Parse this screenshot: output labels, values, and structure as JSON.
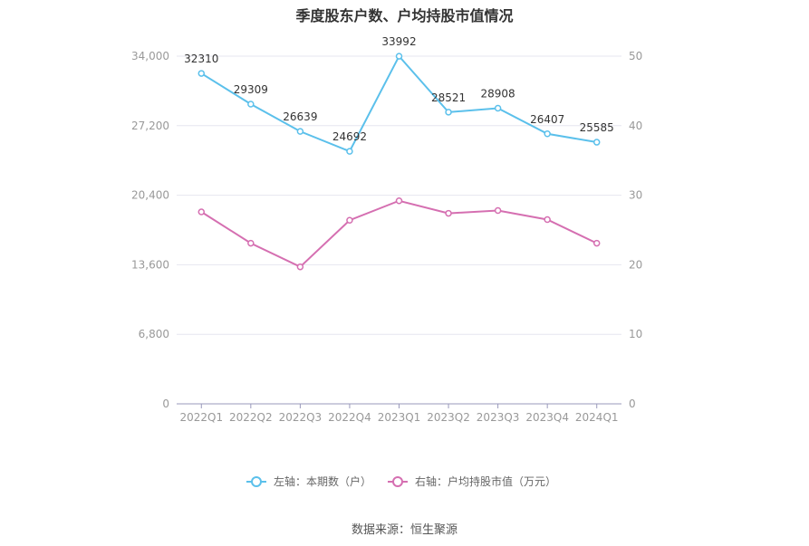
{
  "title": "季度股东户数、户均持股市值情况",
  "source": "数据来源：恒生聚源",
  "colors": {
    "series1": "#5bc0eb",
    "series2": "#d56fb1",
    "grid": "#e6e6ef",
    "axis": "#9999bb"
  },
  "chart_data": {
    "type": "line",
    "title": "季度股东户数、户均持股市值情况",
    "categories": [
      "2022Q1",
      "2022Q2",
      "2022Q3",
      "2022Q4",
      "2023Q1",
      "2023Q2",
      "2023Q3",
      "2023Q4",
      "2024Q1"
    ],
    "left_axis": {
      "ticks": [
        "0",
        "6,800",
        "13,600",
        "20,400",
        "27,200",
        "34,000"
      ],
      "ylim": [
        0,
        34000
      ]
    },
    "right_axis": {
      "ticks": [
        "0",
        "10",
        "20",
        "30",
        "40",
        "50"
      ],
      "ylim": [
        0,
        50
      ]
    },
    "series": [
      {
        "name": "左轴：本期数（户）",
        "axis": "left",
        "values": [
          32310,
          29309,
          26639,
          24692,
          33992,
          28521,
          28908,
          26407,
          25585
        ],
        "labels": [
          "32310",
          "29309",
          "26639",
          "24692",
          "33992",
          "28521",
          "28908",
          "26407",
          "25585"
        ]
      },
      {
        "name": "右轴：户均持股市值（万元）",
        "axis": "right",
        "values": [
          27.6,
          23.1,
          19.7,
          26.4,
          29.2,
          27.4,
          27.8,
          26.5,
          23.1
        ]
      }
    ],
    "grid": true,
    "legend_position": "bottom"
  }
}
